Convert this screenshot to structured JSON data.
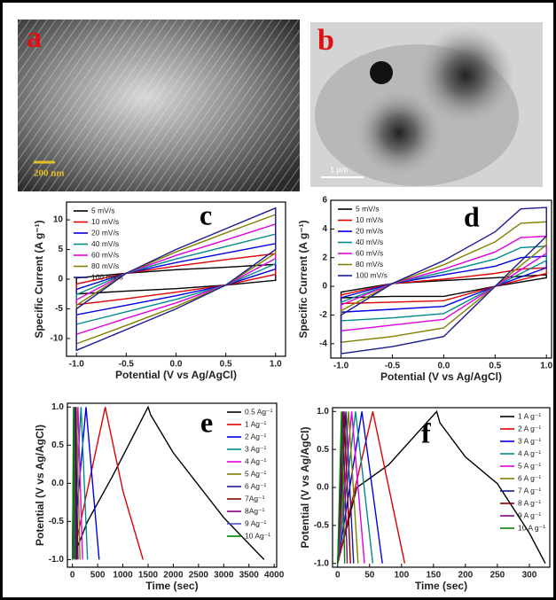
{
  "images": [
    {
      "label": "a",
      "scale_bar": "200 nm"
    },
    {
      "label": "b",
      "scale_bar": "1 μm"
    }
  ],
  "chart_data": [
    {
      "type": "line",
      "label": "c",
      "xlabel": "Potential (V vs Ag/AgCl)",
      "ylabel": "Specific Current (A g⁻¹)",
      "legend": "upper left",
      "x": [
        -1,
        -0.5,
        0,
        0.5,
        1,
        1,
        0.5,
        0,
        -0.5,
        -1
      ],
      "xlim": [
        -1.1,
        1.1
      ],
      "ylim": [
        -13,
        13
      ],
      "xticks": [
        {
          "value": -1,
          "label": "-1.0"
        },
        -0.5,
        {
          "value": 0,
          "label": "0.0"
        },
        0.5,
        {
          "value": 1,
          "label": "1.0"
        }
      ],
      "yticks": [
        -10,
        -5,
        0,
        5,
        10
      ],
      "series": [
        {
          "name": "5 mV/s",
          "color": "#000000",
          "values": [
            0.2,
            1,
            1.6,
            2,
            2.5,
            -0.2,
            -1,
            -1.6,
            -2,
            -2.5
          ]
        },
        {
          "name": "10 mV/s",
          "color": "#e00000",
          "values": [
            -0.8,
            1,
            2.2,
            3.3,
            4.3,
            0.8,
            -1,
            -2.2,
            -3.3,
            -4.3
          ]
        },
        {
          "name": "20 mV/s",
          "color": "#0000e0",
          "values": [
            -1.7,
            1,
            2.8,
            4.4,
            6,
            1.7,
            -1,
            -2.8,
            -4.4,
            -6
          ]
        },
        {
          "name": "40 mV/s",
          "color": "#008b8b",
          "values": [
            -2.6,
            1,
            3.4,
            5.5,
            7.6,
            2.6,
            -1,
            -3.4,
            -5.5,
            -7.6
          ]
        },
        {
          "name": "60 mV/s",
          "color": "#e000e0",
          "values": [
            -3.5,
            1,
            4,
            6.6,
            9.3,
            3.5,
            -1,
            -4,
            -6.6,
            -9.3
          ]
        },
        {
          "name": "80 mV/s",
          "color": "#808000",
          "values": [
            -4.4,
            1,
            4.6,
            7.8,
            10.9,
            4.4,
            -1,
            -4.6,
            -7.8,
            -10.9
          ]
        },
        {
          "name": "100 mV/s",
          "color": "#1a1a8c",
          "values": [
            -5,
            1,
            5,
            8.5,
            12,
            5,
            -1,
            -5,
            -8.5,
            -12
          ]
        }
      ]
    },
    {
      "type": "line",
      "label": "d",
      "xlabel": "Potential (V vs Ag/AgCl)",
      "ylabel": "Specific Current (A g⁻¹)",
      "legend": "upper left",
      "x": [
        -1,
        -0.5,
        0,
        0.5,
        0.75,
        1,
        1,
        0.5,
        0,
        -0.5,
        -1
      ],
      "xlim": [
        -1.1,
        1.05
      ],
      "ylim": [
        -5,
        6
      ],
      "xticks": [
        {
          "value": -1,
          "label": "-1.0"
        },
        -0.5,
        {
          "value": 0,
          "label": "0.0"
        },
        0.5,
        {
          "value": 1,
          "label": "1.0"
        }
      ],
      "yticks": [
        -4,
        -2,
        0,
        2,
        4,
        6
      ],
      "series": [
        {
          "name": "5 mV/s",
          "color": "#000000",
          "values": [
            -0.4,
            0.2,
            0.4,
            0.6,
            0.7,
            0.8,
            0.6,
            0,
            -0.7,
            -0.7,
            -0.8
          ]
        },
        {
          "name": "10 mV/s",
          "color": "#e00000",
          "values": [
            -0.6,
            0.2,
            0.5,
            0.9,
            1.2,
            1.3,
            0.9,
            0,
            -1,
            -1.1,
            -1.2
          ]
        },
        {
          "name": "20 mV/s",
          "color": "#0000e0",
          "values": [
            -0.8,
            0.2,
            0.8,
            1.4,
            2,
            2.1,
            1.3,
            0,
            -1.4,
            -1.6,
            -1.8
          ]
        },
        {
          "name": "40 mV/s",
          "color": "#008b8b",
          "values": [
            -1.1,
            0.2,
            1,
            1.9,
            2.7,
            2.8,
            1.8,
            0,
            -1.9,
            -2.2,
            -2.4
          ]
        },
        {
          "name": "60 mV/s",
          "color": "#e000e0",
          "values": [
            -1.3,
            0.2,
            1.2,
            2.4,
            3.4,
            3.5,
            2.3,
            0,
            -2.3,
            -2.7,
            -3.1
          ]
        },
        {
          "name": "80 mV/s",
          "color": "#808000",
          "values": [
            -1.7,
            0.2,
            1.5,
            3.1,
            4.4,
            4.5,
            2.9,
            0,
            -2.9,
            -3.5,
            -3.9
          ]
        },
        {
          "name": "100 mV/s",
          "color": "#1a1a8c",
          "values": [
            -2,
            0.2,
            1.8,
            3.8,
            5.4,
            5.5,
            3.5,
            0,
            -3.5,
            -4.2,
            -4.7
          ]
        }
      ]
    },
    {
      "type": "line",
      "label": "e",
      "xlabel": "Time (sec)",
      "ylabel": "Potential (V vs Ag/AgCl)",
      "legend": "upper right",
      "xlim": [
        -100,
        4050
      ],
      "ylim": [
        -1.1,
        1.05
      ],
      "xticks": [
        0,
        500,
        1000,
        1500,
        2000,
        2500,
        3000,
        3500,
        4000
      ],
      "yticks": [
        {
          "value": -1,
          "label": "-1.0"
        },
        -0.5,
        {
          "value": 0,
          "label": "0.0"
        },
        0.5,
        {
          "value": 1,
          "label": "1.0"
        }
      ],
      "series": [
        {
          "name": "0.5 Ag⁻¹",
          "color": "#000000",
          "x": [
            0,
            300,
            800,
            1500,
            1550,
            2000,
            3000,
            3800
          ],
          "values": [
            -1,
            -0.5,
            0.1,
            1,
            0.9,
            0.4,
            -0.45,
            -1
          ]
        },
        {
          "name": "1 Ag⁻¹",
          "color": "#e00000",
          "x": [
            0,
            650,
            680,
            1000,
            1400
          ],
          "values": [
            -1,
            1,
            0.9,
            -0.1,
            -1
          ]
        },
        {
          "name": "2 Ag⁻¹",
          "color": "#0000e0",
          "x": [
            0,
            270,
            530
          ],
          "values": [
            -1,
            1,
            -1
          ]
        },
        {
          "name": "3 Ag⁻¹",
          "color": "#008b8b",
          "x": [
            0,
            170,
            300
          ],
          "values": [
            -1,
            1,
            -1
          ]
        },
        {
          "name": "4 Ag⁻¹",
          "color": "#e000e0",
          "x": [
            0,
            110,
            200
          ],
          "values": [
            -1,
            1,
            -1
          ]
        },
        {
          "name": "5 Ag⁻¹",
          "color": "#808000",
          "x": [
            0,
            80,
            150
          ],
          "values": [
            -1,
            1,
            -1
          ]
        },
        {
          "name": "6 Ag⁻¹",
          "color": "#1a1a8c",
          "x": [
            0,
            60,
            110
          ],
          "values": [
            -1,
            1,
            -1
          ]
        },
        {
          "name": "7Ag⁻¹",
          "color": "#800000",
          "x": [
            0,
            45,
            85
          ],
          "values": [
            -1,
            1,
            -1
          ]
        },
        {
          "name": "8Ag⁻¹",
          "color": "#800080",
          "x": [
            0,
            35,
            65
          ],
          "values": [
            -1,
            1,
            -1
          ]
        },
        {
          "name": "9 Ag⁻¹",
          "color": "#5050c0",
          "x": [
            0,
            28,
            50
          ],
          "values": [
            -1,
            1,
            -1
          ]
        },
        {
          "name": "10 Ag⁻¹",
          "color": "#008000",
          "x": [
            0,
            22,
            40
          ],
          "values": [
            -1,
            1,
            -1
          ]
        }
      ]
    },
    {
      "type": "line",
      "label": "f",
      "xlabel": "Time (sec)",
      "ylabel": "Potential (V vs Ag/AgCl)",
      "legend": "upper right",
      "xlim": [
        -8,
        332
      ],
      "ylim": [
        -1.05,
        1.05
      ],
      "xticks": [
        0,
        50,
        100,
        150,
        200,
        250,
        300
      ],
      "yticks": [
        {
          "value": -1,
          "label": "-1.0"
        },
        -0.5,
        {
          "value": 0,
          "label": "0.0"
        },
        0.5,
        {
          "value": 1,
          "label": "1.0"
        }
      ],
      "series": [
        {
          "name": "1 A g⁻¹",
          "color": "#000000",
          "x": [
            0,
            30,
            80,
            155,
            160,
            200,
            250,
            300,
            325
          ],
          "values": [
            -1,
            0,
            0.3,
            1,
            0.85,
            0.4,
            0.05,
            -0.6,
            -1
          ]
        },
        {
          "name": "2 A g⁻¹",
          "color": "#e00000",
          "x": [
            0,
            55,
            105
          ],
          "values": [
            -1,
            1,
            -1
          ]
        },
        {
          "name": "3 A g⁻¹",
          "color": "#0000e0",
          "x": [
            0,
            38,
            70
          ],
          "values": [
            -1,
            1,
            -1
          ]
        },
        {
          "name": "4 A g⁻¹",
          "color": "#008b8b",
          "x": [
            0,
            28,
            55
          ],
          "values": [
            -1,
            1,
            -1
          ]
        },
        {
          "name": "5 A g⁻¹",
          "color": "#e000e0",
          "x": [
            0,
            22,
            42
          ],
          "values": [
            -1,
            1,
            -1
          ]
        },
        {
          "name": "6 A g⁻¹",
          "color": "#808000",
          "x": [
            0,
            17,
            32
          ],
          "values": [
            -1,
            1,
            -1
          ]
        },
        {
          "name": "7 A g⁻¹",
          "color": "#1a1a8c",
          "x": [
            0,
            13,
            25
          ],
          "values": [
            -1,
            1,
            -1
          ]
        },
        {
          "name": "8 A g⁻¹",
          "color": "#800000",
          "x": [
            0,
            10,
            20
          ],
          "values": [
            -1,
            1,
            -1
          ]
        },
        {
          "name": "9 A g⁻¹",
          "color": "#800080",
          "x": [
            0,
            8,
            15
          ],
          "values": [
            -1,
            1,
            -1
          ]
        },
        {
          "name": "10 A g⁻¹",
          "color": "#008000",
          "x": [
            0,
            6,
            11
          ],
          "values": [
            -1,
            1,
            -1
          ]
        }
      ]
    }
  ]
}
